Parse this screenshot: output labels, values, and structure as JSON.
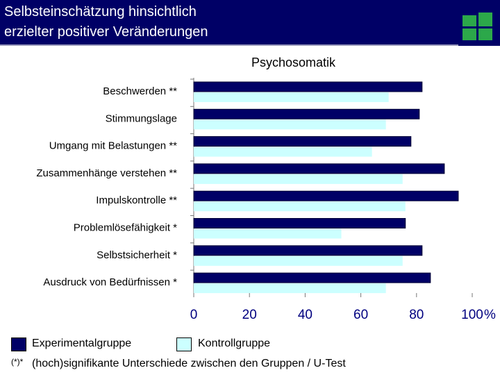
{
  "header": {
    "title_line1": "Selbsteinschätzung hinsichtlich",
    "title_line2": "erzielter positiver Veränderungen"
  },
  "colors": {
    "header_bg": "#000066",
    "experimental": "#000066",
    "control": "#ccffff",
    "tick_text": "#000080",
    "logo": "#2ca84a"
  },
  "chart_data": {
    "type": "bar",
    "orientation": "horizontal",
    "title": "Psychosomatik",
    "categories": [
      "Beschwerden **",
      "Stimmungslage",
      "Umgang mit Belastungen **",
      "Zusammenhänge verstehen **",
      "Impulskontrolle **",
      "Problemlösefähigkeit *",
      "Selbstsicherheit *",
      "Ausdruck von Bedürfnissen *"
    ],
    "series": [
      {
        "name": "Experimentalgruppe",
        "color": "#000066",
        "values": [
          82,
          81,
          78,
          90,
          95,
          76,
          82,
          85
        ]
      },
      {
        "name": "Kontrollgruppe",
        "color": "#ccffff",
        "values": [
          70,
          69,
          64,
          75,
          76,
          53,
          75,
          69
        ]
      }
    ],
    "xlim": [
      0,
      100
    ],
    "xticks": [
      "0",
      "20",
      "40",
      "60",
      "80",
      "100"
    ],
    "x_unit": "%",
    "grid": false,
    "legend_position": "bottom"
  },
  "footnote": {
    "mark": "(*)*",
    "text": "(hoch)signifikante Unterschiede zwischen den Gruppen / U-Test"
  }
}
